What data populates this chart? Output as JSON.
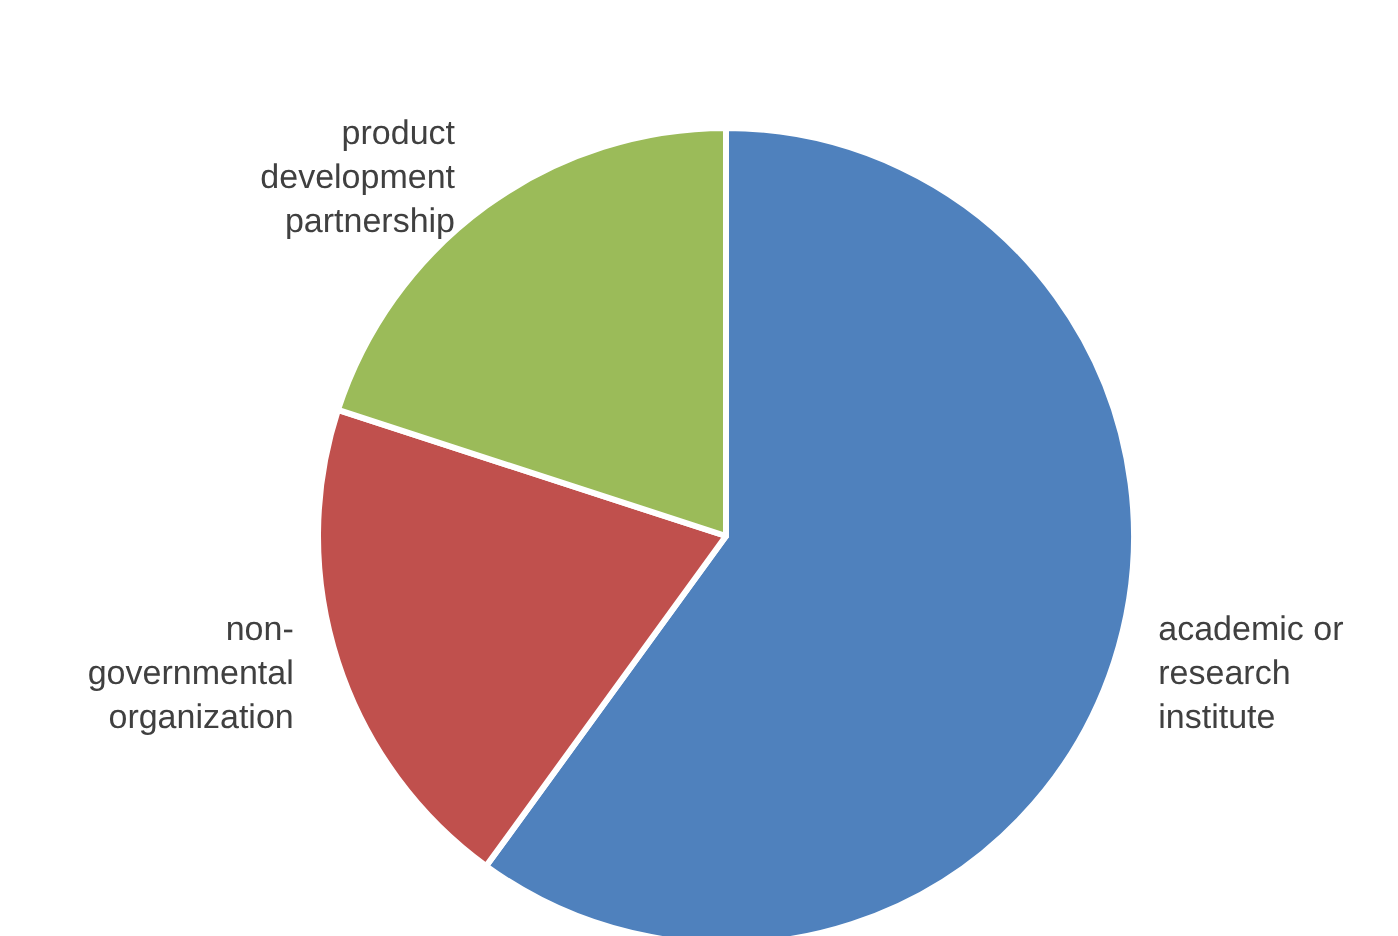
{
  "chart_data": {
    "type": "pie",
    "categories": [
      "academic or research institute",
      "non-governmental organization",
      "product development partnership"
    ],
    "values": [
      60,
      20,
      20
    ],
    "colors": [
      "#4f81bd",
      "#c0504d",
      "#9bbb59"
    ]
  }
}
